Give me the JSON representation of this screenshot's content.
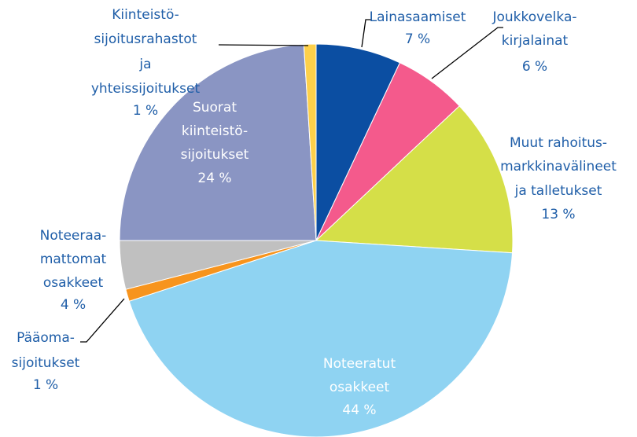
{
  "chart_data": {
    "type": "pie",
    "categories": [
      [
        "Lainasaamiset"
      ],
      [
        "Joukkovelka-",
        "kirjalainat"
      ],
      [
        "Muut rahoitus-",
        "markkinavälineet",
        "ja talletukset"
      ],
      [
        "Noteeratut",
        "osakkeet"
      ],
      [
        "Pääoma-",
        "sijoitukset"
      ],
      [
        "Noteeraa-",
        "mattomat",
        "osakkeet"
      ],
      [
        "Suorat",
        "kiinteistö-",
        "sijoitukset"
      ],
      [
        "Kiinteistö-",
        "sijoitusrahastot",
        "ja",
        "yhteissijoitukset"
      ]
    ],
    "values": [
      7,
      6,
      13,
      44,
      1,
      4,
      24,
      1
    ],
    "value_labels": [
      "7 %",
      "6 %",
      "13 %",
      "44 %",
      "1 %",
      "4 %",
      "24 %",
      "1 %"
    ],
    "colors": [
      "#0b4ea2",
      "#f45a8c",
      "#d5df48",
      "#8fd3f2",
      "#f7941d",
      "#c0c0c0",
      "#8a95c3",
      "#fdd04a"
    ]
  }
}
